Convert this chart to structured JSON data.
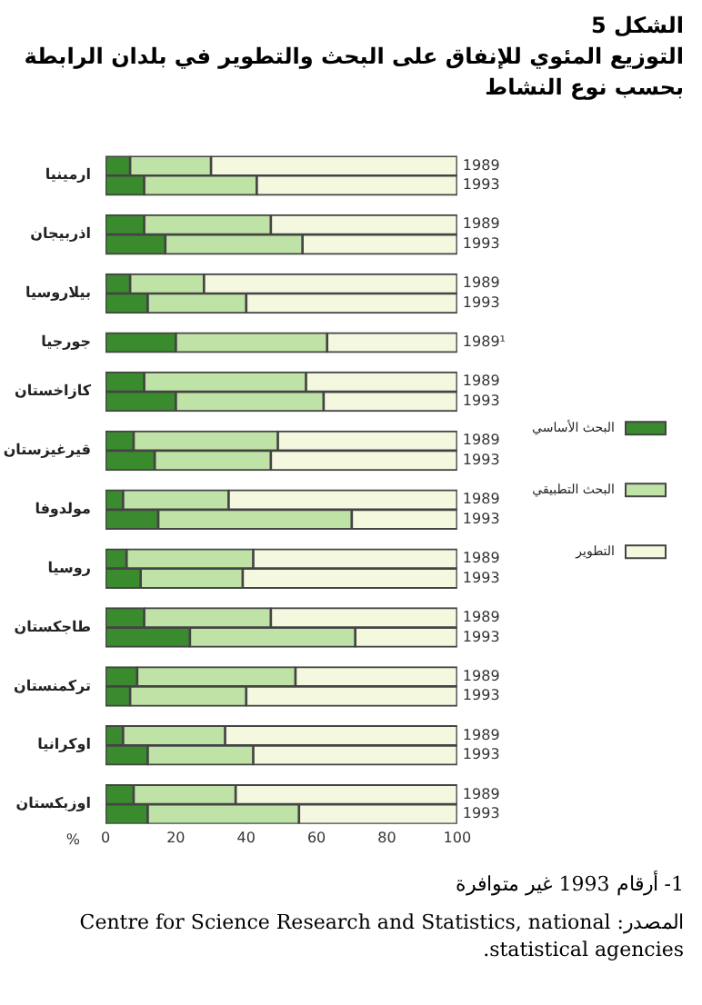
{
  "chart_data": {
    "type": "bar",
    "orientation": "horizontal",
    "stacked": true,
    "title": "الشكل 5",
    "subtitle": "التوزيع المئوي للإنفاق على البحث والتطوير في بلدان الرابطة بحسب نوع النشاط",
    "xlabel": "%",
    "categories": [
      "1989",
      "1993",
      null,
      "1989",
      "1993",
      null,
      "1989",
      "1993",
      null,
      "1989¹",
      null,
      "1989",
      "1993",
      null,
      "1989",
      "1993",
      null,
      "1989",
      "1993",
      null,
      "1989",
      "1993",
      null,
      "1989",
      "1993",
      null,
      "1989",
      "1993",
      null,
      "1989",
      "1993",
      null,
      "1989",
      "1993"
    ],
    "series": [
      {
        "name": "البحث الأساسي",
        "color": "#3a8a2e",
        "values": [
          7,
          11,
          null,
          11,
          17,
          null,
          7,
          12,
          null,
          20,
          null,
          11,
          20,
          null,
          8,
          14,
          null,
          5,
          15,
          null,
          6,
          10,
          null,
          11,
          24,
          null,
          9,
          7,
          null,
          5,
          12,
          null,
          8,
          12
        ]
      },
      {
        "name": "البحث التطبيقي",
        "color": "#bfe3a6",
        "values": [
          23,
          32,
          null,
          36,
          39,
          null,
          21,
          28,
          null,
          43,
          null,
          46,
          42,
          null,
          41,
          33,
          null,
          30,
          55,
          null,
          36,
          29,
          null,
          36,
          47,
          null,
          45,
          33,
          null,
          29,
          30,
          null,
          29,
          43
        ]
      },
      {
        "name": "التطوير",
        "color": "#f3f8df",
        "values": [
          70,
          57,
          null,
          53,
          44,
          null,
          72,
          60,
          null,
          37,
          null,
          43,
          38,
          null,
          51,
          53,
          null,
          65,
          30,
          null,
          58,
          61,
          null,
          53,
          29,
          null,
          46,
          60,
          null,
          66,
          58,
          null,
          63,
          45
        ]
      }
    ],
    "xlim": [
      0,
      100
    ],
    "xticks": [
      0,
      20,
      40,
      60,
      80,
      100
    ],
    "grid": false,
    "legend": "right",
    "annotations": [
      "ارمينيا",
      "اذربيجان",
      "بيلاروسيا",
      "جورجيا",
      "كازاخستان",
      "قيرغيزستان",
      "مولدوفا",
      "روسيا",
      "طاجكستان",
      "تركمنستان",
      "اوكرانيا",
      "اوزبكستان",
      "1-  أرقام 1993 غير متوافرة",
      "المصدر: Centre for Science Research and Statistics, national statistical agencies."
    ]
  }
}
